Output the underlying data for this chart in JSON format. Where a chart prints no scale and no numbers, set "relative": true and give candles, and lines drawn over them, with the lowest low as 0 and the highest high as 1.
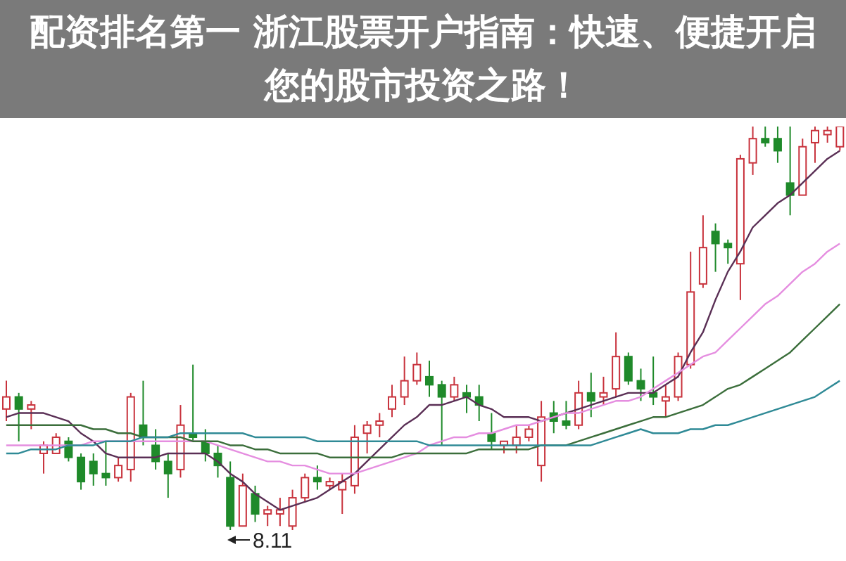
{
  "chart_data": {
    "type": "candlestick",
    "title": "配资排名第一 浙江股票开户指南：快速、便捷开启您的股市投资之路！",
    "relative": true,
    "marker": "none",
    "categories": [
      null,
      null,
      null,
      null,
      null,
      null,
      null,
      null,
      null,
      null,
      null,
      null,
      null,
      null,
      null,
      null,
      null,
      null,
      null,
      null,
      null,
      null,
      null,
      null,
      null,
      null,
      null,
      null,
      null,
      null,
      null,
      null,
      null,
      null,
      null,
      null,
      null,
      null,
      null,
      null,
      null,
      null,
      null,
      null,
      null,
      null,
      null,
      null,
      null,
      null,
      null,
      null,
      null,
      null,
      null,
      null,
      null,
      null,
      null,
      null,
      null,
      null,
      null,
      null,
      null,
      null,
      null,
      null
    ],
    "ohlc": [
      [
        0.3,
        0.37,
        0.27,
        0.33
      ],
      [
        0.33,
        0.34,
        0.22,
        0.3
      ],
      [
        0.3,
        0.32,
        0.25,
        0.31
      ],
      [
        0.19,
        0.22,
        0.14,
        0.21
      ],
      [
        0.19,
        0.24,
        0.19,
        0.23
      ],
      [
        0.22,
        0.23,
        0.17,
        0.18
      ],
      [
        0.18,
        0.19,
        0.1,
        0.12
      ],
      [
        0.17,
        0.19,
        0.11,
        0.14
      ],
      [
        0.14,
        0.22,
        0.11,
        0.13
      ],
      [
        0.13,
        0.18,
        0.12,
        0.16
      ],
      [
        0.15,
        0.34,
        0.12,
        0.33
      ],
      [
        0.26,
        0.37,
        0.21,
        0.23
      ],
      [
        0.21,
        0.25,
        0.15,
        0.17
      ],
      [
        0.17,
        0.19,
        0.08,
        0.14
      ],
      [
        0.15,
        0.31,
        0.13,
        0.26
      ],
      [
        0.24,
        0.41,
        0.22,
        0.23
      ],
      [
        0.22,
        0.25,
        0.17,
        0.19
      ],
      [
        0.19,
        0.21,
        0.13,
        0.16
      ],
      [
        0.13,
        0.17,
        0.0,
        0.01
      ],
      [
        0.01,
        0.14,
        0.01,
        0.11
      ],
      [
        0.09,
        0.11,
        0.02,
        0.04
      ],
      [
        0.04,
        0.06,
        0.01,
        0.05
      ],
      [
        0.04,
        0.08,
        0.01,
        0.05
      ],
      [
        0.01,
        0.1,
        0.0,
        0.08
      ],
      [
        0.08,
        0.14,
        0.07,
        0.13
      ],
      [
        0.13,
        0.16,
        0.1,
        0.12
      ],
      [
        0.11,
        0.13,
        0.1,
        0.12
      ],
      [
        0.1,
        0.14,
        0.04,
        0.12
      ],
      [
        0.11,
        0.26,
        0.09,
        0.23
      ],
      [
        0.24,
        0.27,
        0.19,
        0.26
      ],
      [
        0.26,
        0.29,
        0.23,
        0.27
      ],
      [
        0.3,
        0.36,
        0.28,
        0.33
      ],
      [
        0.33,
        0.43,
        0.31,
        0.37
      ],
      [
        0.37,
        0.44,
        0.36,
        0.41
      ],
      [
        0.38,
        0.42,
        0.33,
        0.36
      ],
      [
        0.36,
        0.37,
        0.21,
        0.33
      ],
      [
        0.33,
        0.38,
        0.32,
        0.36
      ],
      [
        0.34,
        0.36,
        0.29,
        0.33
      ],
      [
        0.33,
        0.36,
        0.27,
        0.31
      ],
      [
        0.24,
        0.29,
        0.2,
        0.22
      ],
      [
        0.21,
        0.22,
        0.19,
        0.22
      ],
      [
        0.21,
        0.26,
        0.19,
        0.23
      ],
      [
        0.23,
        0.26,
        0.22,
        0.25
      ],
      [
        0.16,
        0.32,
        0.12,
        0.28
      ],
      [
        0.29,
        0.32,
        0.24,
        0.27
      ],
      [
        0.27,
        0.32,
        0.25,
        0.26
      ],
      [
        0.26,
        0.37,
        0.25,
        0.34
      ],
      [
        0.34,
        0.39,
        0.28,
        0.32
      ],
      [
        0.33,
        0.38,
        0.31,
        0.34
      ],
      [
        0.35,
        0.49,
        0.33,
        0.43
      ],
      [
        0.43,
        0.44,
        0.36,
        0.37
      ],
      [
        0.37,
        0.4,
        0.32,
        0.35
      ],
      [
        0.34,
        0.43,
        0.31,
        0.33
      ],
      [
        0.32,
        0.36,
        0.28,
        0.33
      ],
      [
        0.33,
        0.44,
        0.32,
        0.43
      ],
      [
        0.41,
        0.69,
        0.4,
        0.59
      ],
      [
        0.61,
        0.78,
        0.6,
        0.7
      ],
      [
        0.74,
        0.76,
        0.64,
        0.71
      ],
      [
        0.71,
        0.72,
        0.66,
        0.7
      ],
      [
        0.66,
        0.93,
        0.57,
        0.92
      ],
      [
        0.91,
        1.0,
        0.88,
        0.97
      ],
      [
        0.97,
        1.0,
        0.95,
        0.96
      ],
      [
        0.97,
        1.0,
        0.91,
        0.94
      ],
      [
        0.86,
        1.0,
        0.78,
        0.83
      ],
      [
        0.83,
        0.97,
        0.83,
        0.95
      ],
      [
        0.96,
        1.0,
        0.91,
        0.99
      ],
      [
        0.98,
        1.0,
        0.96,
        0.99
      ],
      [
        0.95,
        1.0,
        0.94,
        1.0
      ]
    ],
    "series": [
      {
        "type": "line",
        "color": "#5a2f55",
        "values": [
          0.28,
          0.29,
          0.29,
          0.29,
          0.28,
          0.27,
          0.24,
          0.22,
          0.19,
          0.18,
          0.18,
          0.18,
          0.18,
          0.19,
          0.19,
          0.19,
          0.19,
          0.17,
          0.14,
          0.12,
          0.09,
          0.07,
          0.05,
          0.06,
          0.07,
          0.08,
          0.1,
          0.12,
          0.14,
          0.17,
          0.2,
          0.23,
          0.26,
          0.28,
          0.31,
          0.31,
          0.32,
          0.33,
          0.31,
          0.3,
          0.28,
          0.28,
          0.28,
          0.27,
          0.28,
          0.29,
          0.3,
          0.31,
          0.32,
          0.33,
          0.34,
          0.34,
          0.34,
          0.36,
          0.38,
          0.44,
          0.49,
          0.57,
          0.64,
          0.69,
          0.75,
          0.78,
          0.81,
          0.83,
          0.86,
          0.89,
          0.92,
          0.94
        ]
      },
      {
        "type": "line",
        "color": "#e58ee0",
        "values": [
          0.21,
          0.21,
          0.21,
          0.21,
          0.21,
          0.21,
          0.21,
          0.22,
          0.22,
          0.22,
          0.22,
          0.22,
          0.22,
          0.22,
          0.22,
          0.22,
          0.22,
          0.21,
          0.2,
          0.19,
          0.18,
          0.17,
          0.17,
          0.16,
          0.16,
          0.15,
          0.14,
          0.14,
          0.14,
          0.15,
          0.16,
          0.17,
          0.18,
          0.19,
          0.21,
          0.22,
          0.23,
          0.23,
          0.24,
          0.24,
          0.25,
          0.26,
          0.26,
          0.27,
          0.28,
          0.29,
          0.29,
          0.3,
          0.31,
          0.32,
          0.32,
          0.33,
          0.35,
          0.37,
          0.39,
          0.41,
          0.43,
          0.44,
          0.47,
          0.5,
          0.53,
          0.56,
          0.58,
          0.61,
          0.64,
          0.66,
          0.69,
          0.71
        ]
      },
      {
        "type": "line",
        "color": "#3b6e3b",
        "values": [
          0.26,
          0.26,
          0.26,
          0.26,
          0.26,
          0.26,
          0.26,
          0.25,
          0.25,
          0.24,
          0.24,
          0.23,
          0.23,
          0.23,
          0.23,
          0.22,
          0.22,
          0.22,
          0.21,
          0.21,
          0.2,
          0.2,
          0.19,
          0.19,
          0.19,
          0.19,
          0.18,
          0.18,
          0.18,
          0.18,
          0.18,
          0.18,
          0.19,
          0.19,
          0.19,
          0.19,
          0.19,
          0.19,
          0.2,
          0.2,
          0.2,
          0.2,
          0.2,
          0.21,
          0.21,
          0.21,
          0.22,
          0.23,
          0.24,
          0.25,
          0.26,
          0.27,
          0.28,
          0.28,
          0.29,
          0.3,
          0.31,
          0.33,
          0.35,
          0.36,
          0.38,
          0.4,
          0.42,
          0.44,
          0.47,
          0.5,
          0.53,
          0.56
        ]
      },
      {
        "type": "line",
        "color": "#2f8a96",
        "values": [
          0.19,
          0.19,
          0.2,
          0.2,
          0.2,
          0.21,
          0.21,
          0.21,
          0.22,
          0.22,
          0.22,
          0.23,
          0.23,
          0.23,
          0.24,
          0.24,
          0.24,
          0.24,
          0.24,
          0.24,
          0.23,
          0.23,
          0.23,
          0.23,
          0.23,
          0.22,
          0.22,
          0.22,
          0.22,
          0.22,
          0.22,
          0.22,
          0.22,
          0.22,
          0.21,
          0.21,
          0.21,
          0.21,
          0.21,
          0.21,
          0.21,
          0.21,
          0.21,
          0.21,
          0.21,
          0.21,
          0.21,
          0.21,
          0.22,
          0.23,
          0.24,
          0.25,
          0.24,
          0.24,
          0.24,
          0.25,
          0.25,
          0.26,
          0.26,
          0.27,
          0.28,
          0.29,
          0.3,
          0.31,
          0.32,
          0.33,
          0.35,
          0.37
        ]
      }
    ],
    "annotations": [
      {
        "text": "8.11",
        "y": 0.0
      }
    ]
  }
}
